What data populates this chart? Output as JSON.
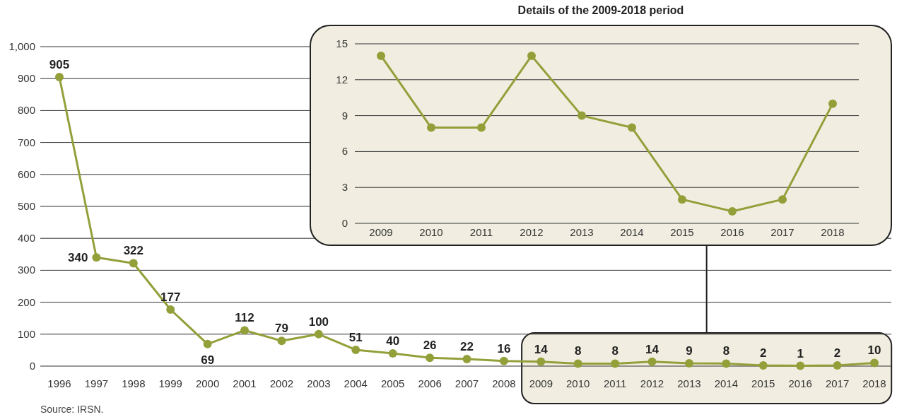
{
  "chart_data": [
    {
      "type": "line",
      "categories": [
        "1996",
        "1997",
        "1998",
        "1999",
        "2000",
        "2001",
        "2002",
        "2003",
        "2004",
        "2005",
        "2006",
        "2007",
        "2008",
        "2009",
        "2010",
        "2011",
        "2012",
        "2013",
        "2014",
        "2015",
        "2016",
        "2017",
        "2018"
      ],
      "series": [
        {
          "color": "#93a03a",
          "values": [
            905,
            340,
            322,
            177,
            69,
            112,
            79,
            100,
            51,
            40,
            26,
            22,
            16,
            14,
            8,
            8,
            14,
            9,
            8,
            2,
            1,
            2,
            10
          ]
        }
      ],
      "ylim": [
        0,
        1000
      ],
      "yticks": [
        0,
        100,
        200,
        300,
        400,
        500,
        600,
        700,
        800,
        900,
        {
          "value": 1000,
          "label": "1,000"
        }
      ],
      "grid": "y",
      "marker": "circle",
      "data_labels": true,
      "bands": [
        {
          "axis": "x",
          "from": "2009",
          "to": "2018",
          "color": "#f1eee1"
        }
      ],
      "annotations": [
        "Source: IRSN."
      ]
    },
    {
      "type": "line",
      "title": "Details of the 2009-2018 period",
      "categories": [
        "2009",
        "2010",
        "2011",
        "2012",
        "2013",
        "2014",
        "2015",
        "2016",
        "2017",
        "2018"
      ],
      "series": [
        {
          "color": "#93a03a",
          "values": [
            14,
            8,
            8,
            14,
            9,
            8,
            2,
            1,
            2,
            10
          ]
        }
      ],
      "ylim": [
        0,
        15
      ],
      "yticks": [
        0,
        3,
        6,
        9,
        12,
        15
      ],
      "grid": "y",
      "marker": "circle"
    }
  ]
}
